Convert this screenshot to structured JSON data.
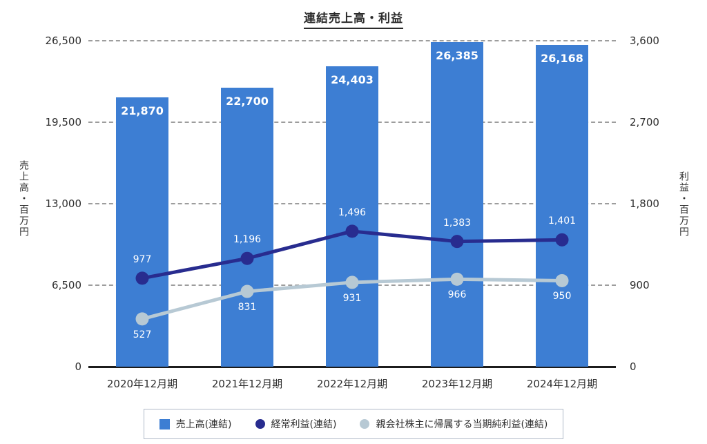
{
  "chart_data": {
    "type": "bar+line",
    "title": "連結売上高・利益",
    "categories": [
      "2020年12月期",
      "2021年12月期",
      "2022年12月期",
      "2023年12月期",
      "2024年12月期"
    ],
    "bar_series": {
      "name": "売上高(連結)",
      "axis": "left",
      "color": "#3D7ED3",
      "values": [
        21870,
        22700,
        24403,
        26385,
        26168
      ],
      "labels": [
        "21,870",
        "22,700",
        "24,403",
        "26,385",
        "26,168"
      ]
    },
    "line_series": [
      {
        "name": "経常利益(連結)",
        "axis": "right",
        "color": "#282C8F",
        "values": [
          977,
          1196,
          1496,
          1383,
          1401
        ],
        "labels": [
          "977",
          "1,196",
          "1,496",
          "1,383",
          "1,401"
        ],
        "label_position": "above"
      },
      {
        "name": "親会社株主に帰属する当期純利益(連結)",
        "axis": "right",
        "color": "#B7C9D4",
        "values": [
          527,
          831,
          931,
          966,
          950
        ],
        "labels": [
          "527",
          "831",
          "931",
          "966",
          "950"
        ],
        "label_position": "below"
      }
    ],
    "left_axis": {
      "label": "売上高・百万円",
      "max": 26500,
      "ticks": [
        "26,500",
        "19,500",
        "13,000",
        "6,500",
        "0"
      ]
    },
    "right_axis": {
      "label": "利益・百万円",
      "max": 3600,
      "ticks": [
        "3,600",
        "2,700",
        "1,800",
        "900",
        "0"
      ]
    },
    "grid": "dashed-horizontal",
    "legend_position": "bottom",
    "colors": {
      "bar": "#3D7ED3",
      "line_ordinary_profit": "#282C8F",
      "line_net_profit": "#B7C9D4",
      "grid": "#8C8C8C",
      "axis": "#1C1C1C",
      "value_label": "#FFFFFF",
      "text": "#2E2E2E"
    }
  }
}
